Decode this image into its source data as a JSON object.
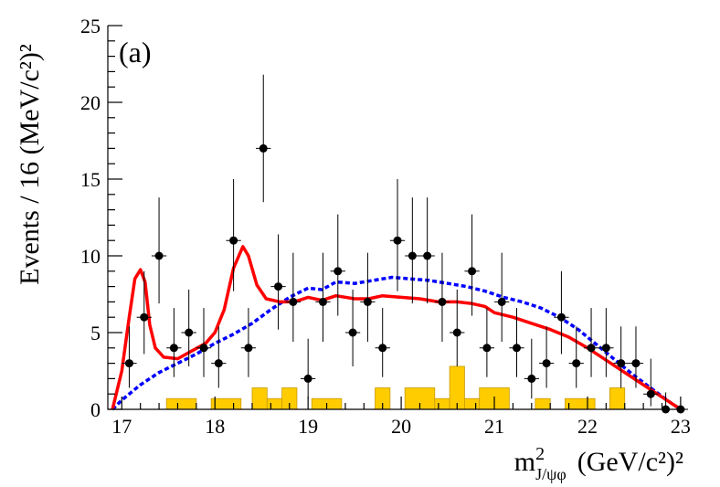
{
  "chart_data": {
    "type": "histogram-with-fit",
    "panel_label": "(a)",
    "ylabel": "Events / 16 (MeV/c²)²",
    "xlabel_main": "m",
    "xlabel_sup": "2",
    "xlabel_sub": "J/ψφ",
    "xlabel_units": "(GeV/c²)²",
    "xlim": [
      16.85,
      23.05
    ],
    "ylim": [
      0,
      25
    ],
    "x_ticks": [
      17,
      18,
      19,
      20,
      21,
      22,
      23
    ],
    "x_tick_labels": [
      "17",
      "18",
      "19",
      "20",
      "21",
      "22",
      "23"
    ],
    "y_ticks": [
      0,
      5,
      10,
      15,
      20,
      25
    ],
    "y_tick_labels": [
      "0",
      "5",
      "10",
      "15",
      "20",
      "25"
    ],
    "bin_width": 0.16,
    "colors": {
      "data": "#000000",
      "fit": "#ff0000",
      "background_curve": "#0000ff",
      "background_hist": "#ffcc00"
    },
    "data_points": [
      {
        "x": 17.08,
        "y": 3,
        "err_up": 2.4,
        "err_down": 1.6
      },
      {
        "x": 17.24,
        "y": 6,
        "err_up": 3.0,
        "err_down": 2.4
      },
      {
        "x": 17.4,
        "y": 10,
        "err_up": 3.8,
        "err_down": 3.1
      },
      {
        "x": 17.56,
        "y": 4,
        "err_up": 2.6,
        "err_down": 1.9
      },
      {
        "x": 17.72,
        "y": 5,
        "err_up": 2.8,
        "err_down": 2.2
      },
      {
        "x": 17.88,
        "y": 4,
        "err_up": 2.6,
        "err_down": 1.9
      },
      {
        "x": 18.04,
        "y": 3,
        "err_up": 2.4,
        "err_down": 1.6
      },
      {
        "x": 18.2,
        "y": 11,
        "err_up": 4.0,
        "err_down": 3.3
      },
      {
        "x": 18.36,
        "y": 4,
        "err_up": 2.6,
        "err_down": 1.9
      },
      {
        "x": 18.52,
        "y": 17,
        "err_up": 4.8,
        "err_down": 3.5
      },
      {
        "x": 18.68,
        "y": 8,
        "err_up": 3.4,
        "err_down": 2.8
      },
      {
        "x": 18.84,
        "y": 7,
        "err_up": 3.2,
        "err_down": 2.6
      },
      {
        "x": 19.0,
        "y": 2,
        "err_up": 2.6,
        "err_down": 1.3
      },
      {
        "x": 19.16,
        "y": 7,
        "err_up": 3.2,
        "err_down": 2.6
      },
      {
        "x": 19.32,
        "y": 9,
        "err_up": 3.7,
        "err_down": 2.9
      },
      {
        "x": 19.48,
        "y": 5,
        "err_up": 2.8,
        "err_down": 2.2
      },
      {
        "x": 19.64,
        "y": 7,
        "err_up": 3.2,
        "err_down": 2.6
      },
      {
        "x": 19.8,
        "y": 4,
        "err_up": 2.6,
        "err_down": 1.9
      },
      {
        "x": 19.96,
        "y": 11,
        "err_up": 4.0,
        "err_down": 3.3
      },
      {
        "x": 20.12,
        "y": 10,
        "err_up": 3.8,
        "err_down": 3.1
      },
      {
        "x": 20.28,
        "y": 10,
        "err_up": 3.8,
        "err_down": 3.1
      },
      {
        "x": 20.44,
        "y": 7,
        "err_up": 3.2,
        "err_down": 2.6
      },
      {
        "x": 20.6,
        "y": 5,
        "err_up": 2.8,
        "err_down": 2.2
      },
      {
        "x": 20.76,
        "y": 9,
        "err_up": 3.7,
        "err_down": 2.9
      },
      {
        "x": 20.92,
        "y": 4,
        "err_up": 2.6,
        "err_down": 1.9
      },
      {
        "x": 21.08,
        "y": 7,
        "err_up": 3.2,
        "err_down": 2.6
      },
      {
        "x": 21.24,
        "y": 4,
        "err_up": 2.6,
        "err_down": 1.9
      },
      {
        "x": 21.4,
        "y": 2,
        "err_up": 2.6,
        "err_down": 1.3
      },
      {
        "x": 21.56,
        "y": 3,
        "err_up": 2.4,
        "err_down": 1.6
      },
      {
        "x": 21.72,
        "y": 6,
        "err_up": 3.0,
        "err_down": 2.4
      },
      {
        "x": 21.88,
        "y": 3,
        "err_up": 2.4,
        "err_down": 1.6
      },
      {
        "x": 22.04,
        "y": 4,
        "err_up": 2.6,
        "err_down": 1.9
      },
      {
        "x": 22.2,
        "y": 4,
        "err_up": 2.6,
        "err_down": 1.9
      },
      {
        "x": 22.36,
        "y": 3,
        "err_up": 2.4,
        "err_down": 1.6
      },
      {
        "x": 22.52,
        "y": 3,
        "err_up": 2.4,
        "err_down": 1.6
      },
      {
        "x": 22.68,
        "y": 1,
        "err_up": 2.3,
        "err_down": 0.8
      },
      {
        "x": 22.84,
        "y": 0,
        "err_up": 1.1,
        "err_down": 0
      },
      {
        "x": 23.0,
        "y": 0,
        "err_up": 0,
        "err_down": 0
      }
    ],
    "background_hist": [
      {
        "x0": 17.48,
        "x1": 17.8,
        "y": 0.7
      },
      {
        "x0": 17.96,
        "x1": 18.28,
        "y": 0.7
      },
      {
        "x0": 18.4,
        "x1": 18.56,
        "y": 1.4
      },
      {
        "x0": 18.56,
        "x1": 18.72,
        "y": 0.7
      },
      {
        "x0": 18.72,
        "x1": 18.88,
        "y": 1.4
      },
      {
        "x0": 19.04,
        "x1": 19.36,
        "y": 0.7
      },
      {
        "x0": 19.72,
        "x1": 19.88,
        "y": 1.4
      },
      {
        "x0": 20.04,
        "x1": 20.36,
        "y": 1.4
      },
      {
        "x0": 20.36,
        "x1": 20.52,
        "y": 0.7
      },
      {
        "x0": 20.52,
        "x1": 20.68,
        "y": 2.8
      },
      {
        "x0": 20.68,
        "x1": 20.84,
        "y": 0.7
      },
      {
        "x0": 20.84,
        "x1": 21.16,
        "y": 1.4
      },
      {
        "x0": 21.44,
        "x1": 21.6,
        "y": 0.7
      },
      {
        "x0": 21.76,
        "x1": 22.08,
        "y": 0.7
      },
      {
        "x0": 22.24,
        "x1": 22.4,
        "y": 1.4
      }
    ],
    "fit_curve": [
      [
        16.9,
        0
      ],
      [
        17.0,
        2.5
      ],
      [
        17.08,
        6.0
      ],
      [
        17.14,
        8.5
      ],
      [
        17.2,
        9.1
      ],
      [
        17.25,
        8.3
      ],
      [
        17.3,
        5.5
      ],
      [
        17.36,
        4.0
      ],
      [
        17.45,
        3.4
      ],
      [
        17.6,
        3.3
      ],
      [
        17.75,
        3.8
      ],
      [
        17.9,
        4.3
      ],
      [
        18.0,
        5.0
      ],
      [
        18.1,
        6.5
      ],
      [
        18.2,
        9.2
      ],
      [
        18.3,
        10.6
      ],
      [
        18.36,
        10.0
      ],
      [
        18.45,
        8.1
      ],
      [
        18.55,
        7.2
      ],
      [
        18.7,
        7.0
      ],
      [
        18.85,
        7.0
      ],
      [
        19.0,
        7.3
      ],
      [
        19.15,
        7.1
      ],
      [
        19.3,
        7.4
      ],
      [
        19.5,
        7.2
      ],
      [
        19.65,
        7.2
      ],
      [
        19.8,
        7.4
      ],
      [
        20.0,
        7.3
      ],
      [
        20.2,
        7.2
      ],
      [
        20.4,
        7.0
      ],
      [
        20.6,
        7.0
      ],
      [
        20.75,
        6.9
      ],
      [
        20.9,
        6.7
      ],
      [
        21.0,
        6.3
      ],
      [
        21.2,
        6.0
      ],
      [
        21.4,
        5.6
      ],
      [
        21.6,
        5.2
      ],
      [
        21.8,
        4.7
      ],
      [
        22.0,
        4.0
      ],
      [
        22.2,
        3.2
      ],
      [
        22.4,
        2.4
      ],
      [
        22.6,
        1.6
      ],
      [
        22.8,
        0.8
      ],
      [
        22.95,
        0.2
      ],
      [
        23.0,
        0
      ]
    ],
    "background_curve": [
      [
        16.9,
        0
      ],
      [
        17.0,
        0.6
      ],
      [
        17.2,
        1.6
      ],
      [
        17.4,
        2.4
      ],
      [
        17.6,
        3.0
      ],
      [
        17.8,
        3.6
      ],
      [
        18.0,
        4.3
      ],
      [
        18.2,
        4.9
      ],
      [
        18.4,
        5.6
      ],
      [
        18.6,
        6.5
      ],
      [
        18.8,
        7.3
      ],
      [
        19.0,
        7.9
      ],
      [
        19.15,
        7.8
      ],
      [
        19.3,
        8.3
      ],
      [
        19.5,
        8.2
      ],
      [
        19.7,
        8.4
      ],
      [
        19.9,
        8.6
      ],
      [
        20.1,
        8.5
      ],
      [
        20.3,
        8.4
      ],
      [
        20.5,
        8.2
      ],
      [
        20.7,
        8.0
      ],
      [
        20.9,
        7.7
      ],
      [
        21.1,
        7.3
      ],
      [
        21.3,
        7.0
      ],
      [
        21.5,
        6.6
      ],
      [
        21.7,
        6.0
      ],
      [
        21.9,
        5.2
      ],
      [
        22.1,
        4.2
      ],
      [
        22.3,
        3.2
      ],
      [
        22.5,
        2.2
      ],
      [
        22.7,
        1.3
      ],
      [
        22.9,
        0.4
      ],
      [
        23.0,
        0
      ]
    ]
  }
}
